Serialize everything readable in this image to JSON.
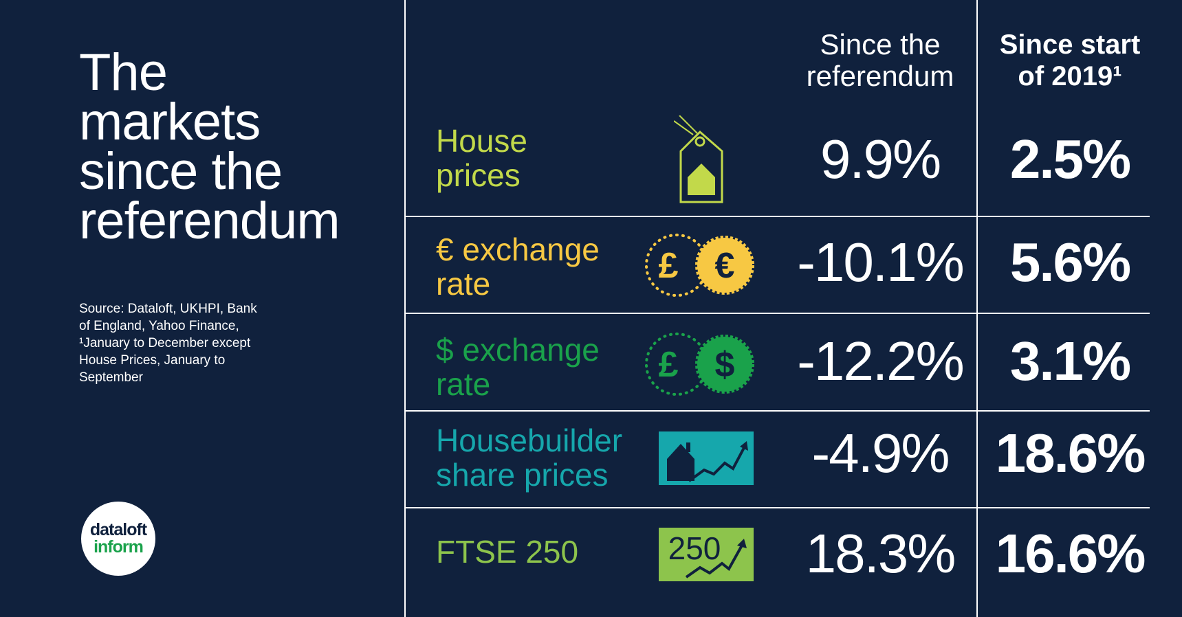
{
  "title_lines": [
    "The",
    "markets",
    "since the",
    "referendum"
  ],
  "source_lines": [
    "Source: Dataloft, UKHPI, Bank",
    "of England, Yahoo Finance,",
    "¹January to December except",
    "House Prices, January to",
    "September"
  ],
  "logo": {
    "line1": "dataloft",
    "line2": "inform"
  },
  "chart_data": {
    "type": "table",
    "columns": [
      {
        "lines": [
          "Since the",
          "referendum"
        ]
      },
      {
        "lines": [
          "Since start",
          "of 2019¹"
        ]
      }
    ],
    "rows": [
      {
        "label_lines": [
          "House",
          "prices"
        ],
        "color": "#c2d94a",
        "icon": "price-tag-house-icon",
        "since_referendum": "9.9%",
        "since_2019": "2.5%"
      },
      {
        "label_lines": [
          "€ exchange",
          "rate"
        ],
        "color": "#f7c843",
        "icon": "pound-euro-coins-icon",
        "since_referendum": "-10.1%",
        "since_2019": "5.6%"
      },
      {
        "label_lines": [
          "$ exchange",
          "rate"
        ],
        "color": "#1aa24b",
        "icon": "pound-dollar-coins-icon",
        "since_referendum": "-12.2%",
        "since_2019": "3.1%"
      },
      {
        "label_lines": [
          "Housebuilder",
          "share prices"
        ],
        "color": "#16a7ac",
        "icon": "house-rising-chart-icon",
        "since_referendum": "-4.9%",
        "since_2019": "18.6%"
      },
      {
        "label_lines": [
          "FTSE 250"
        ],
        "color": "#8dc44c",
        "icon": "ftse-250-chart-icon",
        "since_referendum": "18.3%",
        "since_2019": "16.6%"
      }
    ]
  }
}
